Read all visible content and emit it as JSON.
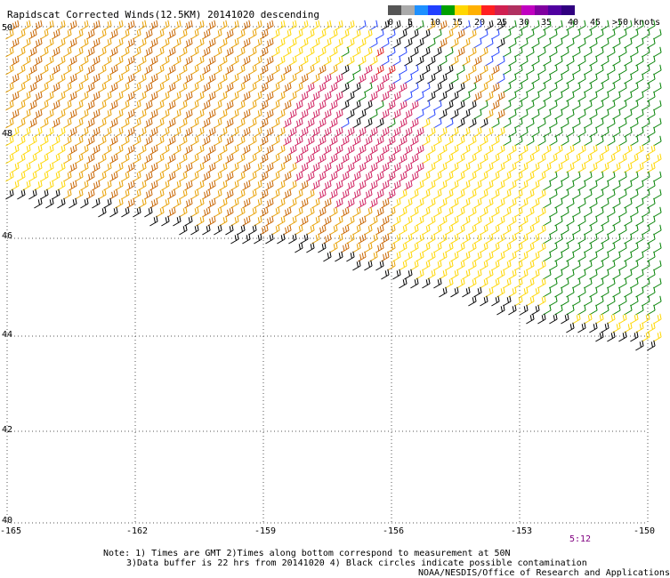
{
  "title": "Rapidscat Corrected Winds(12.5KM) 20141020 descending",
  "legend": {
    "labels": [
      "0",
      "5",
      "10",
      "15",
      "20",
      "25",
      "30",
      "35",
      "40",
      "45",
      ">50 knots"
    ],
    "colors": [
      "#555555",
      "#aaaaaa",
      "#1e90ff",
      "#2040ff",
      "#00a000",
      "#ffd700",
      "#ffb000",
      "#ff2020",
      "#d02050",
      "#b03060",
      "#c000c0",
      "#8000a0",
      "#5000a0",
      "#300080"
    ]
  },
  "axes": {
    "lat_labels": [
      "50",
      "48",
      "46",
      "44",
      "42",
      "40"
    ],
    "lon_labels": [
      "-165",
      "-162",
      "-159",
      "-156",
      "-153",
      "-150"
    ]
  },
  "timestamp": "5:12",
  "notes": {
    "line1": "Note: 1) Times are GMT 2)Times along bottom correspond to measurement at 50N",
    "line2": "3)Data buffer is 22 hrs from 20141020 4) Black circles indicate possible contamination",
    "credit": "NOAA/NESDIS/Office of Research and Applications"
  },
  "map_data": {
    "lon_range": [
      -165,
      -150
    ],
    "lat_range": [
      40,
      50
    ],
    "grid": "dotted, every 3 deg lon and 2 deg lat",
    "wind_colors": {
      "orange": "#e8a000",
      "dark_orange": "#c86400",
      "yellow": "#ffd700",
      "red": "#e02020",
      "magenta": "#d02060",
      "green": "#008000",
      "blue": "#2040ff",
      "black": "#000000"
    }
  }
}
